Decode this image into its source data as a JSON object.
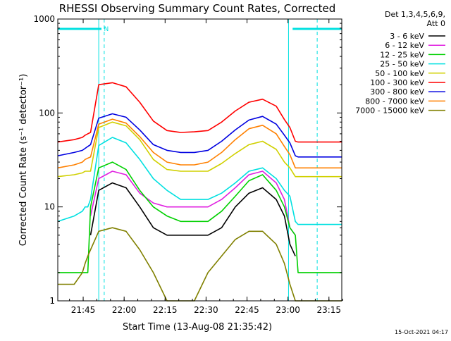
{
  "chart_data": {
    "type": "line",
    "title": "RHESSI Observing Summary Count Rates, Corrected",
    "xlabel": "Start Time (13-Aug-08 21:35:42)",
    "ylabel": "Corrected Count Rate (s⁻¹ detector⁻¹)",
    "yscale": "log",
    "ylim": [
      1,
      1000
    ],
    "xlim_minutes": [
      0,
      104
    ],
    "x_tick_labels": [
      "21:45",
      "22:00",
      "22:15",
      "22:30",
      "22:45",
      "23:00",
      "23:15"
    ],
    "x_tick_minutes": [
      9.3,
      24.3,
      39.3,
      54.3,
      69.3,
      84.3,
      99.3
    ],
    "y_tick_labels": [
      "1",
      "10",
      "100",
      "1000"
    ],
    "y_tick_values": [
      1,
      10,
      100,
      1000
    ],
    "legend_header": [
      "Det 1,3,4,5,6,9,",
      "Att 0"
    ],
    "legend_position": "right",
    "annotations": {
      "night_label": "N",
      "vertical_markers_minutes": [
        15,
        84.5
      ],
      "dashed_markers_minutes": [
        17,
        95
      ],
      "bars_minutes": [
        [
          0,
          16
        ],
        [
          86,
          104
        ]
      ]
    },
    "footer": "15-Oct-2021 04:17",
    "series_times": [
      0,
      6,
      9,
      10,
      11,
      12,
      15,
      20,
      25,
      30,
      35,
      40,
      45,
      50,
      55,
      60,
      65,
      70,
      75,
      80,
      83,
      85,
      87,
      88,
      95,
      100,
      104
    ],
    "series": [
      {
        "name": "3 - 6 keV",
        "color": "#000000",
        "values": [
          null,
          null,
          null,
          null,
          null,
          5,
          15,
          18,
          16,
          10,
          6,
          5,
          5,
          5,
          5,
          6,
          10,
          14,
          16,
          12,
          8,
          4,
          3,
          null,
          null,
          null,
          null
        ]
      },
      {
        "name": "6 - 12 keV",
        "color": "#e020e0",
        "values": [
          null,
          null,
          null,
          null,
          null,
          8,
          20,
          24,
          22,
          14,
          11,
          10,
          10,
          10,
          10,
          12,
          16,
          22,
          24,
          18,
          12,
          6,
          5,
          null,
          null,
          null,
          null
        ]
      },
      {
        "name": "12 - 25 keV",
        "color": "#00d000",
        "values": [
          2,
          2,
          2,
          2,
          2,
          10,
          26,
          30,
          25,
          15,
          10,
          8,
          7,
          7,
          7,
          9,
          13,
          19,
          22,
          15,
          10,
          6,
          5,
          2,
          2,
          2,
          2
        ]
      },
      {
        "name": "25 - 50 keV",
        "color": "#00e0e0",
        "values": [
          7,
          8,
          9,
          10,
          10,
          12,
          45,
          55,
          48,
          32,
          20,
          15,
          12,
          12,
          12,
          14,
          18,
          24,
          26,
          20,
          15,
          13,
          7,
          6.5,
          6.5,
          6.5,
          6.5
        ]
      },
      {
        "name": "50 - 100 keV",
        "color": "#d0d000",
        "values": [
          21,
          22,
          23,
          24,
          24,
          24,
          70,
          80,
          73,
          52,
          32,
          25,
          24,
          24,
          24,
          29,
          37,
          46,
          50,
          41,
          30,
          26,
          21,
          21,
          21,
          21,
          21
        ]
      },
      {
        "name": "100 - 300 keV",
        "color": "#ff0000",
        "values": [
          49,
          52,
          55,
          58,
          60,
          62,
          200,
          210,
          190,
          130,
          82,
          65,
          62,
          63,
          65,
          80,
          105,
          130,
          140,
          118,
          85,
          70,
          50,
          49,
          49,
          49,
          49
        ]
      },
      {
        "name": "300 - 800 keV",
        "color": "#0000e0",
        "values": [
          35,
          38,
          40,
          42,
          44,
          46,
          88,
          98,
          90,
          66,
          46,
          40,
          38,
          38,
          40,
          50,
          66,
          84,
          92,
          76,
          58,
          48,
          35,
          34,
          34,
          34,
          34
        ]
      },
      {
        "name": "800 - 7000 keV",
        "color": "#ff8000",
        "values": [
          26,
          28,
          30,
          32,
          33,
          34,
          76,
          86,
          78,
          56,
          38,
          30,
          28,
          28,
          30,
          38,
          52,
          68,
          74,
          60,
          44,
          36,
          26,
          26,
          26,
          26,
          26
        ]
      },
      {
        "name": "7000 - 15000 keV",
        "color": "#808000",
        "values": [
          1.5,
          1.5,
          2,
          2.5,
          3,
          3.5,
          5.5,
          6,
          5.5,
          3.5,
          2,
          1,
          1,
          1,
          2,
          3,
          4.5,
          5.5,
          5.5,
          4,
          2.5,
          1.5,
          1,
          1,
          1,
          1,
          1
        ]
      }
    ]
  }
}
